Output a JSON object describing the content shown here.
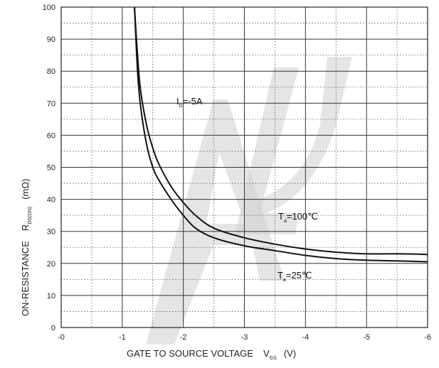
{
  "chart_data": {
    "type": "line",
    "xlim": [
      0,
      -6
    ],
    "ylim": [
      0,
      100
    ],
    "x_ticks": [
      "-0",
      "-1",
      "-2",
      "-3",
      "-4",
      "-5",
      "-6"
    ],
    "y_ticks": [
      "0",
      "10",
      "20",
      "30",
      "40",
      "50",
      "60",
      "70",
      "80",
      "90",
      "100"
    ],
    "grid": "solid major lines with dotted minor lines",
    "xlabel": {
      "main": "GATE TO SOURCE VOLTAGE",
      "sym": "V",
      "sub": "GS",
      "unit": "(V)"
    },
    "ylabel": {
      "main": "ON-RESISTANCE",
      "sym": "R",
      "sub": "DS(ON)",
      "unit": "(mΩ)"
    },
    "annotations": [
      {
        "text": "I",
        "sub": "D",
        "rest": "=-5A"
      },
      {
        "text": "T",
        "sub": "a",
        "rest": "=100℃"
      },
      {
        "text": "T",
        "sub": "a",
        "rest": "=25℃"
      }
    ],
    "series": [
      {
        "label_ref": 1,
        "x": [
          -1.2,
          -1.25,
          -1.3,
          -1.4,
          -1.5,
          -1.6,
          -1.8,
          -2.0,
          -2.2,
          -2.5,
          -3.0,
          -3.5,
          -4.0,
          -4.5,
          -5.0,
          -5.5,
          -6.0
        ],
        "y": [
          100,
          85,
          74,
          63,
          56,
          51,
          44,
          39,
          35,
          31,
          28,
          26,
          24.5,
          23.5,
          23,
          23,
          22.8
        ]
      },
      {
        "label_ref": 2,
        "x": [
          -1.2,
          -1.25,
          -1.3,
          -1.4,
          -1.5,
          -1.6,
          -1.8,
          -2.0,
          -2.2,
          -2.5,
          -3.0,
          -3.5,
          -4.0,
          -4.5,
          -5.0,
          -5.5,
          -6.0
        ],
        "y": [
          100,
          80,
          69,
          57,
          50,
          46,
          40,
          35,
          31,
          28,
          25.5,
          24,
          22.5,
          21.5,
          21,
          20.8,
          20.5
        ]
      }
    ]
  }
}
